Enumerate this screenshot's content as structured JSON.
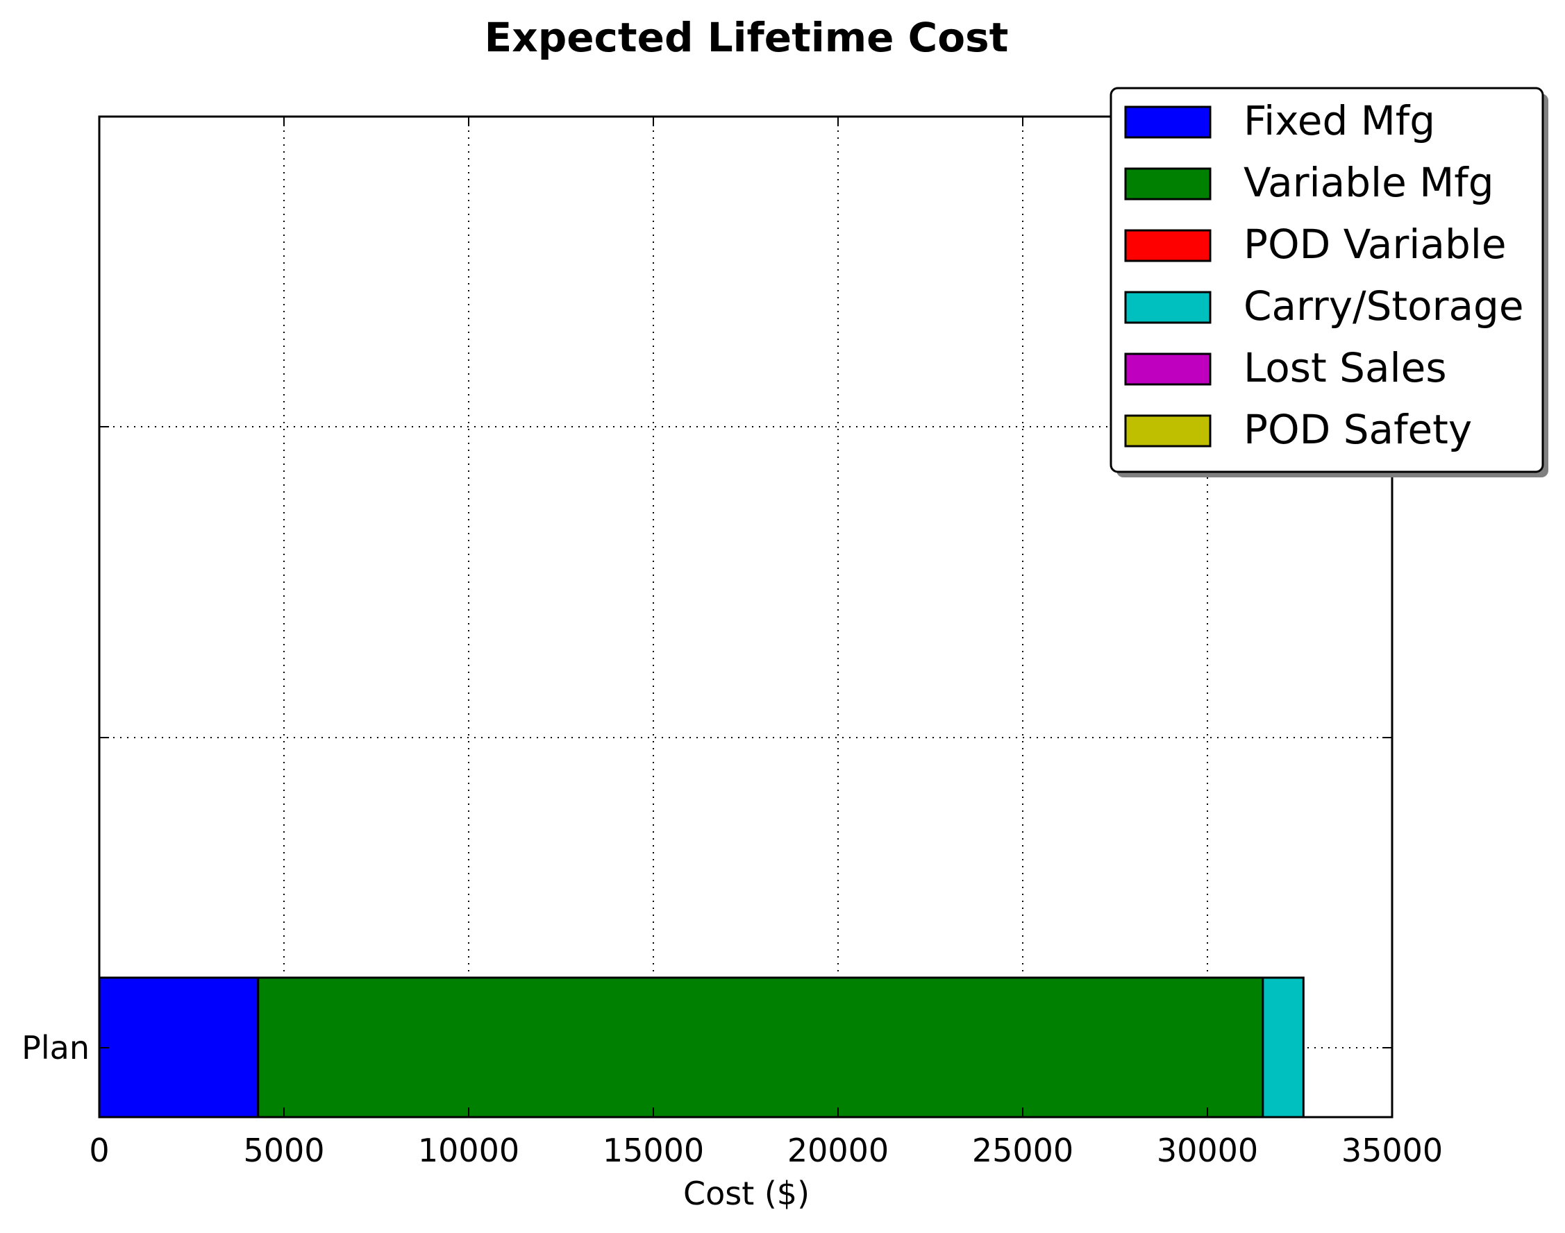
{
  "chart_data": {
    "type": "bar",
    "orientation": "horizontal",
    "stacked": true,
    "title": "Expected Lifetime Cost",
    "xlabel": "Cost ($)",
    "ylabel": "",
    "categories": [
      "Plan"
    ],
    "xlim": [
      0,
      35000
    ],
    "xticks": [
      0,
      5000,
      10000,
      15000,
      20000,
      25000,
      30000,
      35000
    ],
    "xtick_labels": [
      "0",
      "5000",
      "10000",
      "15000",
      "20000",
      "25000",
      "30000",
      "35000"
    ],
    "grid": true,
    "legend_position": "top-right",
    "series": [
      {
        "name": "Fixed Mfg",
        "values": [
          4300
        ],
        "color": "#0000ff"
      },
      {
        "name": "Variable Mfg",
        "values": [
          27200
        ],
        "color": "#008000"
      },
      {
        "name": "POD Variable",
        "values": [
          0
        ],
        "color": "#ff0000"
      },
      {
        "name": "Carry/Storage",
        "values": [
          1100
        ],
        "color": "#00bfbf"
      },
      {
        "name": "Lost Sales",
        "values": [
          0
        ],
        "color": "#bf00bf"
      },
      {
        "name": "POD Safety",
        "values": [
          0
        ],
        "color": "#bfbf00"
      }
    ]
  }
}
